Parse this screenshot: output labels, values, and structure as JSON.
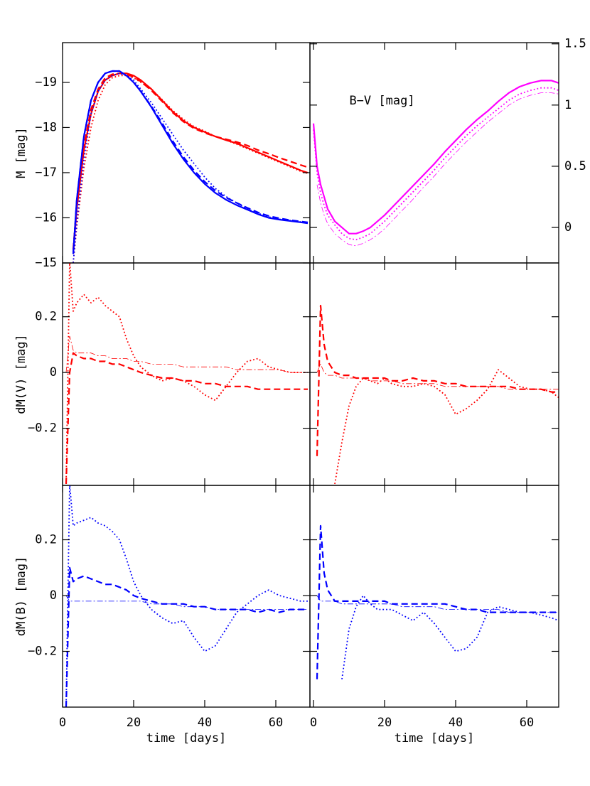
{
  "chart_data": [
    {
      "type": "line",
      "ylabel": "M [mag]",
      "xlim": [
        0,
        69.6
      ],
      "ylim": [
        -15,
        -19.88
      ],
      "xticks": [
        0,
        20,
        40,
        60
      ],
      "xtick_labels": false,
      "yaxis_side": "left",
      "yticks": [
        {
          "value": -19,
          "label": "−19"
        },
        {
          "value": -18,
          "label": "−18"
        },
        {
          "value": -17,
          "label": "−17"
        },
        {
          "value": -16,
          "label": "−16"
        },
        {
          "value": -15,
          "label": "−15"
        }
      ],
      "x": [
        3,
        4,
        6,
        8,
        10,
        12,
        14,
        16,
        18,
        20,
        22,
        25,
        28,
        31,
        34,
        37,
        40,
        43,
        46,
        49,
        52,
        55,
        58,
        61,
        64,
        67,
        69
      ],
      "series": [
        {
          "color": "#ff0000",
          "style": "solid",
          "values": [
            -15.2,
            -16.2,
            -17.5,
            -18.3,
            -18.8,
            -19.05,
            -19.15,
            -19.2,
            -19.2,
            -19.15,
            -19.05,
            -18.85,
            -18.6,
            -18.35,
            -18.15,
            -18.0,
            -17.9,
            -17.8,
            -17.72,
            -17.65,
            -17.55,
            -17.45,
            -17.35,
            -17.25,
            -17.15,
            -17.05,
            -17.0
          ]
        },
        {
          "color": "#ff0000",
          "style": "dashed",
          "values": [
            -15.3,
            -16.3,
            -17.6,
            -18.4,
            -18.85,
            -19.1,
            -19.18,
            -19.2,
            -19.18,
            -19.12,
            -19.02,
            -18.82,
            -18.58,
            -18.33,
            -18.13,
            -17.98,
            -17.88,
            -17.8,
            -17.74,
            -17.68,
            -17.6,
            -17.5,
            -17.42,
            -17.33,
            -17.25,
            -17.17,
            -17.12
          ]
        },
        {
          "color": "#ff0000",
          "style": "dotted",
          "values": [
            -15.0,
            -15.8,
            -17.1,
            -18.0,
            -18.6,
            -18.95,
            -19.1,
            -19.15,
            -19.15,
            -19.1,
            -19.0,
            -18.85,
            -18.62,
            -18.38,
            -18.18,
            -18.02,
            -17.92,
            -17.8,
            -17.72,
            -17.63,
            -17.53,
            -17.43,
            -17.33,
            -17.23,
            -17.13,
            -17.03,
            -16.98
          ]
        },
        {
          "color": "#0000ff",
          "style": "solid",
          "values": [
            -15.2,
            -16.4,
            -17.8,
            -18.6,
            -19.0,
            -19.2,
            -19.25,
            -19.25,
            -19.15,
            -19.0,
            -18.8,
            -18.45,
            -18.05,
            -17.65,
            -17.3,
            -17.0,
            -16.75,
            -16.55,
            -16.4,
            -16.28,
            -16.18,
            -16.08,
            -16.0,
            -15.96,
            -15.93,
            -15.9,
            -15.88
          ]
        },
        {
          "color": "#0000ff",
          "style": "dashed",
          "values": [
            -15.2,
            -16.4,
            -17.8,
            -18.6,
            -19.0,
            -19.2,
            -19.25,
            -19.25,
            -19.15,
            -19.0,
            -18.8,
            -18.47,
            -18.1,
            -17.7,
            -17.35,
            -17.05,
            -16.8,
            -16.6,
            -16.45,
            -16.33,
            -16.22,
            -16.12,
            -16.04,
            -15.99,
            -15.95,
            -15.92,
            -15.9
          ]
        },
        {
          "color": "#0000ff",
          "style": "dotted",
          "values": [
            -15.0,
            -15.9,
            -17.3,
            -18.3,
            -18.8,
            -19.05,
            -19.15,
            -19.2,
            -19.15,
            -19.05,
            -18.85,
            -18.55,
            -18.2,
            -17.85,
            -17.5,
            -17.2,
            -16.9,
            -16.65,
            -16.47,
            -16.33,
            -16.2,
            -16.1,
            -16.02,
            -15.97,
            -15.94,
            -15.91,
            -15.89
          ]
        }
      ]
    },
    {
      "type": "line",
      "annotation": "B−V [mag]",
      "xlim": [
        -1,
        69
      ],
      "ylim": [
        -0.29,
        1.51
      ],
      "xticks": [
        0,
        20,
        40,
        60
      ],
      "xtick_labels": false,
      "yaxis_side": "right",
      "yticks": [
        0,
        0.5,
        1,
        1.5
      ],
      "x": [
        0,
        1,
        2,
        3,
        4,
        6,
        8,
        10,
        12,
        14,
        16,
        18,
        20,
        22,
        25,
        28,
        31,
        34,
        37,
        40,
        43,
        46,
        49,
        52,
        55,
        58,
        61,
        64,
        67,
        69
      ],
      "series": [
        {
          "color": "#ff00ff",
          "style": "solid",
          "values": [
            0.85,
            0.5,
            0.35,
            0.25,
            0.15,
            0.05,
            0.0,
            -0.05,
            -0.05,
            -0.03,
            0.0,
            0.05,
            0.1,
            0.16,
            0.25,
            0.34,
            0.43,
            0.52,
            0.62,
            0.71,
            0.8,
            0.88,
            0.95,
            1.03,
            1.1,
            1.15,
            1.18,
            1.2,
            1.2,
            1.18
          ]
        },
        {
          "color": "#ff00ff",
          "style": "dotted",
          "values": [
            0.8,
            0.45,
            0.28,
            0.18,
            0.1,
            0.02,
            -0.05,
            -0.09,
            -0.1,
            -0.08,
            -0.05,
            0.0,
            0.05,
            0.11,
            0.2,
            0.29,
            0.38,
            0.47,
            0.57,
            0.66,
            0.75,
            0.83,
            0.9,
            0.97,
            1.04,
            1.09,
            1.12,
            1.14,
            1.14,
            1.12
          ]
        },
        {
          "color": "#ff00ff",
          "style": "thin",
          "values": [
            null,
            0.35,
            0.2,
            0.1,
            0.03,
            -0.05,
            -0.1,
            -0.14,
            -0.15,
            -0.13,
            -0.1,
            -0.06,
            -0.01,
            0.05,
            0.14,
            0.23,
            0.33,
            0.42,
            0.52,
            0.61,
            0.7,
            0.78,
            0.86,
            0.93,
            1.0,
            1.05,
            1.08,
            1.1,
            1.1,
            1.09
          ]
        }
      ]
    },
    {
      "type": "line",
      "ylabel": "dM(V) [mag]",
      "xlim": [
        0,
        69.6
      ],
      "ylim": [
        -0.405,
        0.393
      ],
      "xticks": [
        0,
        20,
        40,
        60
      ],
      "xtick_labels": false,
      "yaxis_side": "left",
      "yticks": [
        {
          "value": -0.2,
          "label": "−0.2"
        },
        0,
        0.2
      ],
      "x": [
        1,
        2,
        3,
        4,
        6,
        8,
        10,
        12,
        14,
        16,
        18,
        20,
        22,
        25,
        28,
        31,
        34,
        37,
        40,
        43,
        46,
        49,
        52,
        55,
        58,
        61,
        64,
        67,
        69
      ],
      "series": [
        {
          "color": "#ff0000",
          "style": "dotted",
          "values": [
            -0.4,
            0.4,
            0.22,
            0.25,
            0.28,
            0.25,
            0.27,
            0.24,
            0.22,
            0.2,
            0.12,
            0.06,
            0.02,
            -0.01,
            -0.03,
            -0.02,
            -0.03,
            -0.05,
            -0.08,
            -0.1,
            -0.05,
            0.0,
            0.04,
            0.05,
            0.02,
            0.01,
            0.0,
            0.0,
            0.0
          ]
        },
        {
          "color": "#ff0000",
          "style": "dashed",
          "values": [
            -0.4,
            0.0,
            0.07,
            0.06,
            0.05,
            0.05,
            0.04,
            0.04,
            0.03,
            0.03,
            0.02,
            0.01,
            0.0,
            -0.01,
            -0.02,
            -0.02,
            -0.03,
            -0.03,
            -0.04,
            -0.04,
            -0.05,
            -0.05,
            -0.05,
            -0.06,
            -0.06,
            -0.06,
            -0.06,
            -0.06,
            -0.06
          ]
        },
        {
          "color": "#ff0000",
          "style": "thin",
          "values": [
            0.0,
            0.13,
            0.08,
            0.07,
            0.07,
            0.07,
            0.06,
            0.06,
            0.05,
            0.05,
            0.05,
            0.04,
            0.04,
            0.03,
            0.03,
            0.03,
            0.02,
            0.02,
            0.02,
            0.02,
            0.02,
            0.01,
            0.01,
            0.01,
            0.01,
            0.01,
            0.0,
            0.0,
            0.0
          ]
        }
      ]
    },
    {
      "type": "line",
      "xlim": [
        -1,
        69
      ],
      "ylim": [
        -0.405,
        0.393
      ],
      "xticks": [
        0,
        20,
        40,
        60
      ],
      "xtick_labels": false,
      "yaxis_side": "none",
      "yticks": [
        -0.2,
        0,
        0.2
      ],
      "x": [
        0,
        1,
        2,
        3,
        4,
        5,
        6,
        8,
        10,
        12,
        14,
        16,
        18,
        20,
        22,
        25,
        28,
        31,
        34,
        37,
        40,
        43,
        46,
        49,
        52,
        55,
        58,
        61,
        64,
        67,
        69
      ],
      "series": [
        {
          "color": "#ff0000",
          "style": "dashed",
          "values": [
            null,
            -0.3,
            0.24,
            0.1,
            0.04,
            0.02,
            0.0,
            -0.01,
            -0.01,
            -0.02,
            -0.02,
            -0.02,
            -0.02,
            -0.02,
            -0.03,
            -0.03,
            -0.02,
            -0.03,
            -0.03,
            -0.04,
            -0.04,
            -0.05,
            -0.05,
            -0.05,
            -0.05,
            -0.05,
            -0.06,
            -0.06,
            -0.06,
            -0.07,
            -0.07
          ]
        },
        {
          "color": "#ff0000",
          "style": "dotted",
          "values": [
            null,
            null,
            null,
            null,
            null,
            null,
            -0.4,
            -0.25,
            -0.12,
            -0.05,
            -0.02,
            -0.03,
            -0.04,
            -0.02,
            -0.04,
            -0.05,
            -0.05,
            -0.04,
            -0.05,
            -0.08,
            -0.15,
            -0.13,
            -0.1,
            -0.06,
            0.01,
            -0.02,
            -0.05,
            -0.06,
            -0.06,
            -0.07,
            -0.09
          ]
        },
        {
          "color": "#ff0000",
          "style": "thin",
          "values": [
            null,
            0.0,
            0.03,
            0.0,
            -0.01,
            -0.01,
            -0.01,
            -0.02,
            -0.02,
            -0.02,
            -0.02,
            -0.03,
            -0.03,
            -0.03,
            -0.03,
            -0.04,
            -0.04,
            -0.04,
            -0.04,
            -0.05,
            -0.05,
            -0.05,
            -0.05,
            -0.05,
            -0.05,
            -0.06,
            -0.06,
            -0.06,
            -0.06,
            -0.06,
            -0.06
          ]
        }
      ]
    },
    {
      "type": "line",
      "ylabel": "dM(B) [mag]",
      "xlabel": "time [days]",
      "xlim": [
        0,
        69.6
      ],
      "ylim": [
        -0.4,
        0.395
      ],
      "xticks": [
        0,
        20,
        40,
        60
      ],
      "xtick_labels": true,
      "yaxis_side": "left",
      "yticks": [
        {
          "value": -0.2,
          "label": "−0.2"
        },
        0,
        0.2
      ],
      "x": [
        1,
        2,
        3,
        4,
        6,
        8,
        10,
        12,
        14,
        16,
        18,
        20,
        22,
        25,
        28,
        31,
        34,
        37,
        40,
        43,
        46,
        49,
        52,
        55,
        58,
        61,
        64,
        67,
        69
      ],
      "series": [
        {
          "color": "#0000ff",
          "style": "dotted",
          "values": [
            -0.4,
            0.4,
            0.25,
            0.26,
            0.27,
            0.28,
            0.26,
            0.25,
            0.23,
            0.2,
            0.13,
            0.05,
            0.0,
            -0.05,
            -0.08,
            -0.1,
            -0.09,
            -0.15,
            -0.2,
            -0.18,
            -0.12,
            -0.06,
            -0.03,
            0.0,
            0.02,
            0.0,
            -0.01,
            -0.02,
            -0.02
          ]
        },
        {
          "color": "#0000ff",
          "style": "dashed",
          "values": [
            -0.4,
            0.1,
            0.05,
            0.06,
            0.07,
            0.06,
            0.05,
            0.04,
            0.04,
            0.03,
            0.02,
            0.0,
            -0.01,
            -0.02,
            -0.03,
            -0.03,
            -0.03,
            -0.04,
            -0.04,
            -0.05,
            -0.05,
            -0.05,
            -0.05,
            -0.06,
            -0.05,
            -0.06,
            -0.05,
            -0.05,
            -0.05
          ]
        },
        {
          "color": "#0000ff",
          "style": "thin",
          "values": [
            0.0,
            -0.02,
            -0.02,
            -0.02,
            -0.02,
            -0.02,
            -0.02,
            -0.02,
            -0.02,
            -0.02,
            -0.02,
            -0.02,
            -0.02,
            -0.03,
            -0.03,
            -0.03,
            -0.04,
            -0.04,
            -0.04,
            -0.05,
            -0.05,
            -0.05,
            -0.05,
            -0.05,
            -0.05,
            -0.05,
            -0.05,
            -0.05,
            -0.05
          ]
        }
      ]
    },
    {
      "type": "line",
      "xlabel": "time [days]",
      "xlim": [
        -1,
        69
      ],
      "ylim": [
        -0.4,
        0.395
      ],
      "xticks": [
        0,
        20,
        40,
        60
      ],
      "xtick_labels": true,
      "yaxis_side": "none",
      "yticks": [
        -0.2,
        0,
        0.2
      ],
      "x": [
        0,
        1,
        2,
        3,
        4,
        5,
        6,
        8,
        10,
        12,
        14,
        16,
        18,
        20,
        22,
        25,
        28,
        31,
        34,
        37,
        40,
        43,
        46,
        49,
        52,
        55,
        58,
        61,
        64,
        67,
        69
      ],
      "series": [
        {
          "color": "#0000ff",
          "style": "dashed",
          "values": [
            null,
            -0.3,
            0.25,
            0.08,
            0.02,
            0.0,
            -0.02,
            -0.02,
            -0.02,
            -0.02,
            -0.02,
            -0.02,
            -0.02,
            -0.02,
            -0.03,
            -0.03,
            -0.03,
            -0.03,
            -0.03,
            -0.03,
            -0.04,
            -0.05,
            -0.05,
            -0.06,
            -0.06,
            -0.06,
            -0.06,
            -0.06,
            -0.06,
            -0.06,
            -0.06
          ]
        },
        {
          "color": "#0000ff",
          "style": "dotted",
          "values": [
            null,
            null,
            null,
            null,
            null,
            null,
            null,
            -0.3,
            -0.12,
            -0.04,
            0.0,
            -0.03,
            -0.05,
            -0.05,
            -0.05,
            -0.07,
            -0.09,
            -0.06,
            -0.1,
            -0.15,
            -0.2,
            -0.19,
            -0.15,
            -0.06,
            -0.04,
            -0.05,
            -0.06,
            -0.06,
            -0.07,
            -0.08,
            -0.09
          ]
        },
        {
          "color": "#0000ff",
          "style": "thin",
          "values": [
            null,
            0.0,
            -0.02,
            -0.02,
            -0.02,
            -0.02,
            -0.02,
            -0.03,
            -0.03,
            -0.03,
            -0.03,
            -0.03,
            -0.03,
            -0.03,
            -0.03,
            -0.04,
            -0.04,
            -0.04,
            -0.04,
            -0.05,
            -0.05,
            -0.05,
            -0.05,
            -0.05,
            -0.05,
            -0.06,
            -0.06,
            -0.06,
            -0.06,
            -0.06,
            -0.06
          ]
        }
      ]
    }
  ]
}
